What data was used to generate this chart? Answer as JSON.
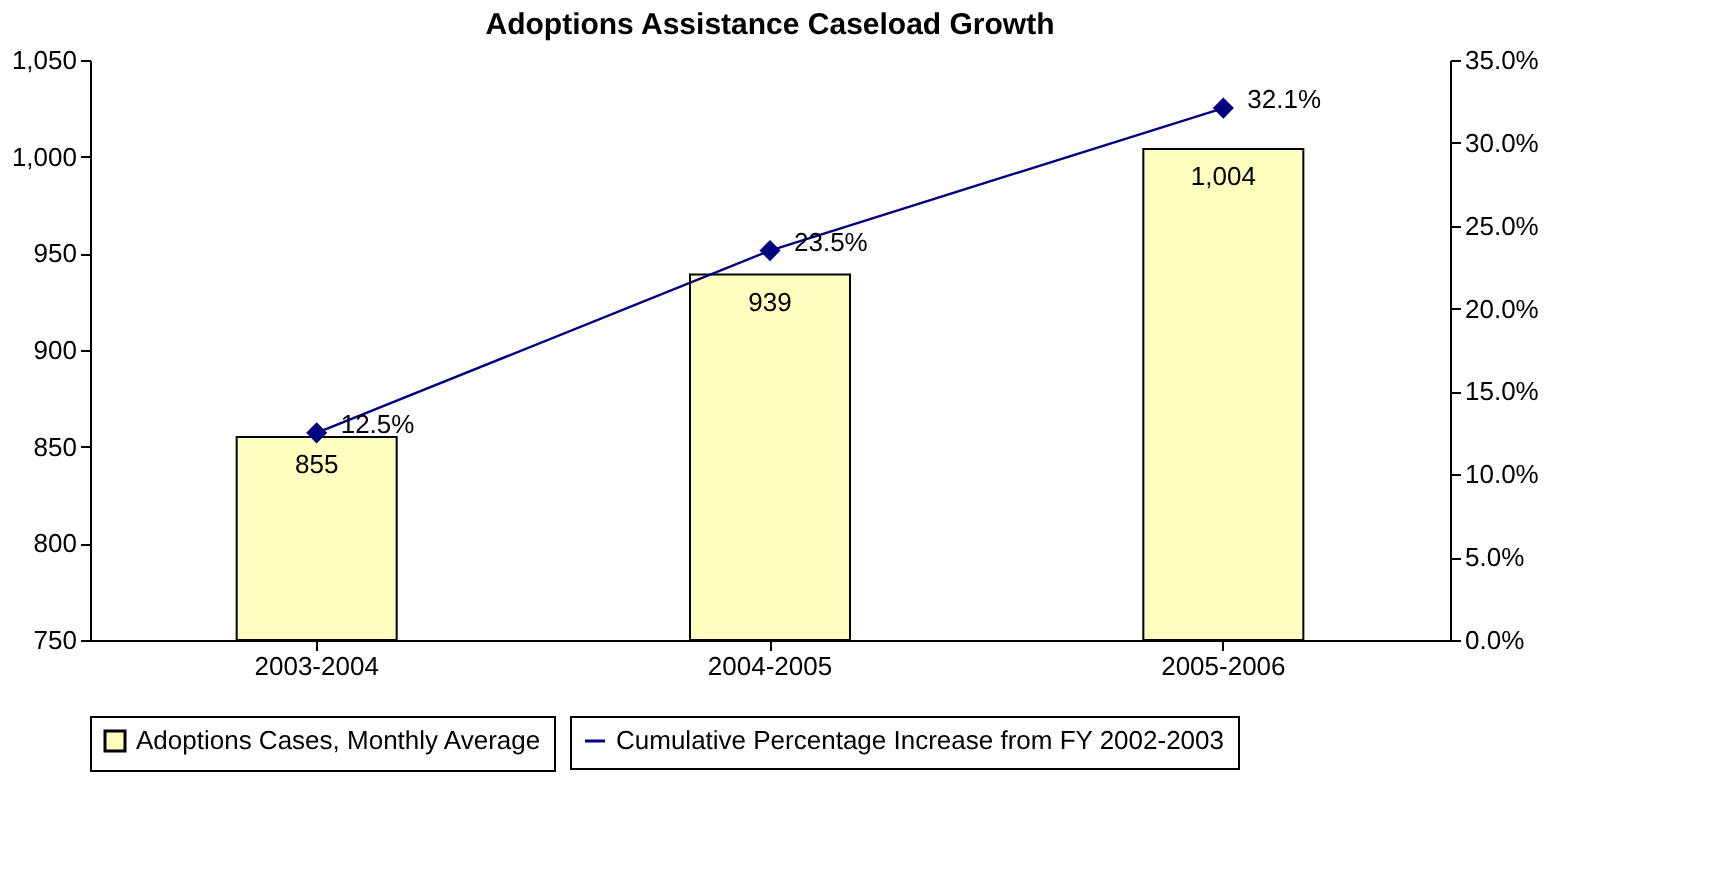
{
  "chart_data": {
    "type": "bar",
    "title": "Adoptions Assistance Caseload Growth",
    "categories": [
      "2003-2004",
      "2004-2005",
      "2005-2006"
    ],
    "series": [
      {
        "name": "Adoptions Cases, Monthly Average",
        "color": "#ffffc0",
        "values": [
          855,
          939,
          1004
        ],
        "value_labels": [
          "855",
          "939",
          "1,004"
        ]
      },
      {
        "name": "Cumulative Percentage Increase from FY 2002-2003",
        "type": "line",
        "axis": "y2",
        "color": "#000080",
        "marker": "diamond",
        "values": [
          12.5,
          23.5,
          32.1
        ],
        "value_labels": [
          "12.5%",
          "23.5%",
          "32.1%"
        ]
      }
    ],
    "ylim": [
      750,
      1050
    ],
    "yticks": [
      750,
      800,
      850,
      900,
      950,
      {
        "value": 1000,
        "label": "1,000"
      },
      {
        "value": 1050,
        "label": "1,050"
      }
    ],
    "y2lim": [
      0,
      35
    ],
    "y2ticks": [
      {
        "value": 0,
        "label": "0.0%"
      },
      {
        "value": 5,
        "label": "5.0%"
      },
      {
        "value": 10,
        "label": "10.0%"
      },
      {
        "value": 15,
        "label": "15.0%"
      },
      {
        "value": 20,
        "label": "20.0%"
      },
      {
        "value": 25,
        "label": "25.0%"
      },
      {
        "value": 30,
        "label": "30.0%"
      },
      {
        "value": 35,
        "label": "35.0%"
      }
    ],
    "grid": false,
    "legend": "bottom"
  }
}
